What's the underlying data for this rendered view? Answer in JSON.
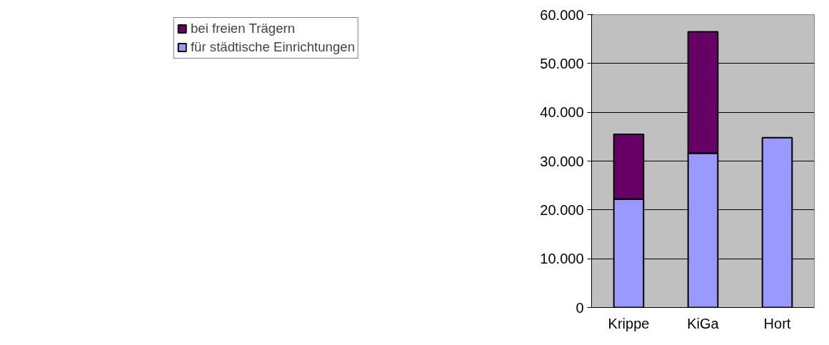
{
  "chart_data": {
    "type": "bar",
    "stacked": true,
    "categories": [
      "Krippe",
      "KiGa",
      "Hort"
    ],
    "series": [
      {
        "name": "für städtische Einrichtungen",
        "color": "#9999ff",
        "values": [
          22200,
          31600,
          34800
        ]
      },
      {
        "name": "bei freien Trägern",
        "color": "#660066",
        "values": [
          13300,
          24900,
          null
        ]
      }
    ],
    "ylim": [
      0,
      60000
    ],
    "yticks": [
      0,
      {
        "value": 10000,
        "label": "10.000"
      },
      {
        "value": 20000,
        "label": "20.000"
      },
      {
        "value": 30000,
        "label": "30.000"
      },
      {
        "value": 40000,
        "label": "40.000"
      },
      {
        "value": 50000,
        "label": "50.000"
      },
      {
        "value": 60000,
        "label": "60.000"
      }
    ],
    "grid": "y",
    "legend": "left"
  }
}
